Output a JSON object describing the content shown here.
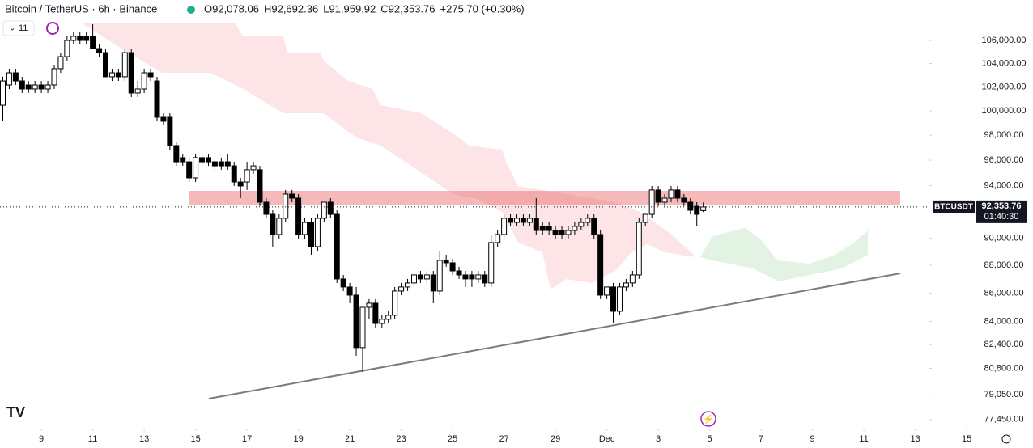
{
  "chart_data": {
    "type": "candlestick",
    "title": "Bitcoin / TetherUS · 6h · Binance",
    "ohlc_header": [
      {
        "label": "O",
        "value": "92,078.06"
      },
      {
        "label": "H",
        "value": "92,692.36"
      },
      {
        "label": "L",
        "value": "91,959.92"
      },
      {
        "label": "C",
        "value": "92,353.76"
      }
    ],
    "change": "+275.70 (+0.30%)",
    "indicator_count": "11",
    "last_price": {
      "symbol": "BTCUSDT",
      "price": "92,353.76",
      "countdown": "01:40:30"
    },
    "up_color": "#ffffff",
    "down_color": "#000000",
    "log_scale": true,
    "xlim": [
      7.39,
      47.58
    ],
    "ylim": [
      76870,
      109610
    ],
    "xticks": [
      9,
      11,
      13,
      15,
      17,
      19,
      21,
      23,
      25,
      27,
      29,
      {
        "value": 31,
        "label": "Dec"
      },
      {
        "value": 33,
        "label": "3"
      },
      {
        "value": 35,
        "label": "5"
      },
      {
        "value": 37,
        "label": "7"
      },
      {
        "value": 39,
        "label": "9"
      },
      {
        "value": 41,
        "label": "11"
      },
      {
        "value": 43,
        "label": "13"
      },
      {
        "value": 45,
        "label": "15"
      }
    ],
    "yticks": [
      {
        "value": 106000,
        "label": "106,000.00"
      },
      {
        "value": 104000,
        "label": "104,000.00"
      },
      {
        "value": 102000,
        "label": "102,000.00"
      },
      {
        "value": 100000,
        "label": "100,000.00"
      },
      {
        "value": 98000,
        "label": "98,000.00"
      },
      {
        "value": 96000,
        "label": "96,000.00"
      },
      {
        "value": 94000,
        "label": "94,000.00"
      },
      {
        "value": 90000,
        "label": "90,000.00"
      },
      {
        "value": 88000,
        "label": "88,000.00"
      },
      {
        "value": 86000,
        "label": "86,000.00"
      },
      {
        "value": 84000,
        "label": "84,000.00"
      },
      {
        "value": 82400,
        "label": "82,400.00"
      },
      {
        "value": 80800,
        "label": "80,800.00"
      },
      {
        "value": 79050,
        "label": "79,050.00"
      },
      {
        "value": 77450,
        "label": "77,450.00"
      }
    ],
    "x": [
      7.5,
      7.75,
      8,
      8.25,
      8.5,
      8.75,
      9,
      9.25,
      9.5,
      9.75,
      10,
      10.25,
      10.5,
      10.75,
      11,
      11.25,
      11.5,
      11.75,
      12,
      12.25,
      12.5,
      12.75,
      13,
      13.25,
      13.5,
      13.75,
      14,
      14.25,
      14.5,
      14.75,
      15,
      15.25,
      15.5,
      15.75,
      16,
      16.25,
      16.5,
      16.75,
      17,
      17.25,
      17.5,
      17.75,
      18,
      18.25,
      18.5,
      18.75,
      19,
      19.25,
      19.5,
      19.75,
      20,
      20.25,
      20.5,
      20.75,
      21,
      21.25,
      21.5,
      21.75,
      22,
      22.25,
      22.5,
      22.75,
      23,
      23.25,
      23.5,
      23.75,
      24,
      24.25,
      24.5,
      24.75,
      25,
      25.25,
      25.5,
      25.75,
      26,
      26.25,
      26.5,
      26.75,
      27,
      27.25,
      27.5,
      27.75,
      28,
      28.25,
      28.5,
      28.75,
      29,
      29.25,
      29.5,
      29.75,
      30,
      30.25,
      30.5,
      30.75,
      31,
      31.25,
      31.5,
      31.75,
      32,
      32.25,
      32.5,
      32.75,
      33,
      33.25,
      33.5,
      33.75,
      34,
      34.25,
      34.5,
      34.75
    ],
    "open": [
      100470,
      102170,
      103200,
      102510,
      102170,
      101830,
      102170,
      101830,
      102170,
      103550,
      104590,
      106000,
      106360,
      106360,
      106360,
      105290,
      104940,
      102860,
      103200,
      102860,
      104940,
      101490,
      101830,
      103200,
      102510,
      99470,
      99470,
      97170,
      96200,
      95870,
      94600,
      96200,
      96200,
      95870,
      95870,
      95870,
      95550,
      94280,
      94280,
      95240,
      95240,
      92720,
      91790,
      90270,
      91490,
      93340,
      93030,
      90270,
      91180,
      89370,
      91490,
      92720,
      91790,
      87010,
      86430,
      85850,
      82200,
      84990,
      85280,
      83860,
      84150,
      84430,
      86140,
      86430,
      86720,
      87300,
      87010,
      87300,
      86140,
      88360,
      88180,
      87590,
      87300,
      87300,
      87010,
      87300,
      86720,
      89670,
      90270,
      91490,
      91180,
      91490,
      91180,
      91490,
      90880,
      90880,
      90570,
      90570,
      90270,
      90570,
      90880,
      91180,
      91490,
      90270,
      85850,
      86430,
      84710,
      86430,
      86720,
      87300,
      91180,
      91790,
      93660,
      92720,
      93030,
      93660,
      93030,
      92720,
      92410,
      92078.06
    ],
    "high": [
      102860,
      103550,
      103550,
      102860,
      102510,
      102510,
      102510,
      102510,
      103890,
      104940,
      106360,
      106710,
      106710,
      106710,
      107430,
      105650,
      105290,
      103550,
      103550,
      105290,
      105290,
      102510,
      103550,
      103550,
      102860,
      99800,
      99800,
      97490,
      96520,
      96200,
      96520,
      96520,
      96520,
      96200,
      96200,
      96520,
      95870,
      94600,
      95870,
      95870,
      95550,
      93030,
      92100,
      91790,
      93660,
      93660,
      93340,
      91490,
      91490,
      91790,
      92720,
      93030,
      92100,
      87300,
      86720,
      86430,
      84990,
      85570,
      85570,
      84430,
      84710,
      86430,
      86720,
      87010,
      87890,
      87590,
      87590,
      87590,
      89070,
      88770,
      88480,
      87890,
      87590,
      87590,
      87590,
      87590,
      90270,
      90570,
      91790,
      91790,
      91790,
      91790,
      91790,
      93030,
      91180,
      91180,
      90880,
      90880,
      90880,
      91180,
      91490,
      91790,
      91790,
      90570,
      86430,
      86720,
      86720,
      87010,
      87590,
      91490,
      91790,
      93970,
      93970,
      93340,
      93970,
      93970,
      93340,
      93030,
      92720,
      92692.36
    ],
    "low": [
      99140,
      101830,
      102170,
      101490,
      101490,
      101490,
      101490,
      101490,
      101830,
      103200,
      104240,
      105650,
      105650,
      105650,
      105290,
      104590,
      102860,
      102510,
      102510,
      102510,
      101150,
      101150,
      101490,
      102510,
      99140,
      98810,
      96840,
      95550,
      95550,
      94280,
      94280,
      95550,
      95550,
      95240,
      95240,
      95240,
      93970,
      93030,
      93660,
      94920,
      92410,
      91490,
      89370,
      89970,
      91180,
      92720,
      89970,
      89970,
      88770,
      89070,
      91180,
      91490,
      86720,
      86140,
      85280,
      81650,
      80560,
      84150,
      83580,
      83580,
      83860,
      84150,
      85850,
      86140,
      86430,
      86720,
      86720,
      85280,
      85850,
      87890,
      87300,
      87010,
      86430,
      86430,
      86720,
      86430,
      86430,
      89370,
      89970,
      90880,
      90880,
      90880,
      90880,
      90270,
      90270,
      90270,
      89970,
      89970,
      89970,
      90270,
      90570,
      90880,
      89970,
      85570,
      85570,
      83860,
      84430,
      86140,
      86430,
      87010,
      90880,
      91490,
      92410,
      92410,
      92720,
      92720,
      92410,
      91790,
      90880,
      91959.92
    ],
    "close": [
      102510,
      103200,
      102510,
      101830,
      101830,
      102170,
      101830,
      102170,
      103550,
      104590,
      106000,
      106360,
      106000,
      106000,
      105290,
      104940,
      102860,
      103200,
      102860,
      104940,
      101490,
      101830,
      103200,
      102860,
      99470,
      99140,
      97170,
      95870,
      95870,
      94600,
      96200,
      95870,
      95870,
      95550,
      95550,
      95550,
      94280,
      93970,
      95240,
      95550,
      92720,
      91790,
      90270,
      91490,
      93340,
      93030,
      90270,
      91180,
      89370,
      91490,
      92720,
      91790,
      87010,
      86430,
      85850,
      82200,
      84990,
      85280,
      83860,
      84150,
      84430,
      86140,
      86430,
      86720,
      87300,
      87010,
      87300,
      86140,
      88360,
      88180,
      87590,
      87300,
      87010,
      87010,
      87300,
      86720,
      89670,
      90270,
      91490,
      91180,
      91490,
      91180,
      91490,
      90570,
      90570,
      90570,
      90270,
      90270,
      90570,
      90880,
      91180,
      91490,
      90270,
      85850,
      86430,
      84710,
      86430,
      86720,
      87300,
      91180,
      91790,
      93660,
      92720,
      93030,
      93660,
      93030,
      92720,
      92100,
      91790,
      92353.76
    ]
  }
}
